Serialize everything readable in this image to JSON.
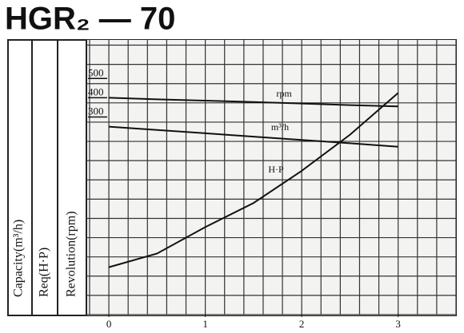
{
  "chart_data": {
    "type": "line",
    "title": "HGR₂ — 70",
    "y_labels": [
      "Capacity(m³/h)",
      "Req(H·P)",
      "Revolution(rpm)"
    ],
    "x": [
      0,
      0.5,
      1,
      1.5,
      2,
      2.5,
      3
    ],
    "series": [
      {
        "name": "rpm",
        "color": "#111111",
        "values": [
          400,
          392,
          385,
          378,
          370,
          362,
          355
        ]
      },
      {
        "name": "m³/h",
        "color": "#111111",
        "values": [
          250,
          233,
          216,
          198,
          181,
          164,
          146
        ]
      },
      {
        "name": "H·P",
        "color": "#111111",
        "values": [
          -479,
          -408,
          -271,
          -146,
          21,
          208,
          425
        ]
      }
    ],
    "xlim": [
      -0.233,
      3.6
    ],
    "xticks": [
      0,
      1,
      2,
      3
    ],
    "ylim": [
      -725,
      700
    ],
    "yticks": [
      300,
      400,
      500
    ],
    "grid": true
  }
}
